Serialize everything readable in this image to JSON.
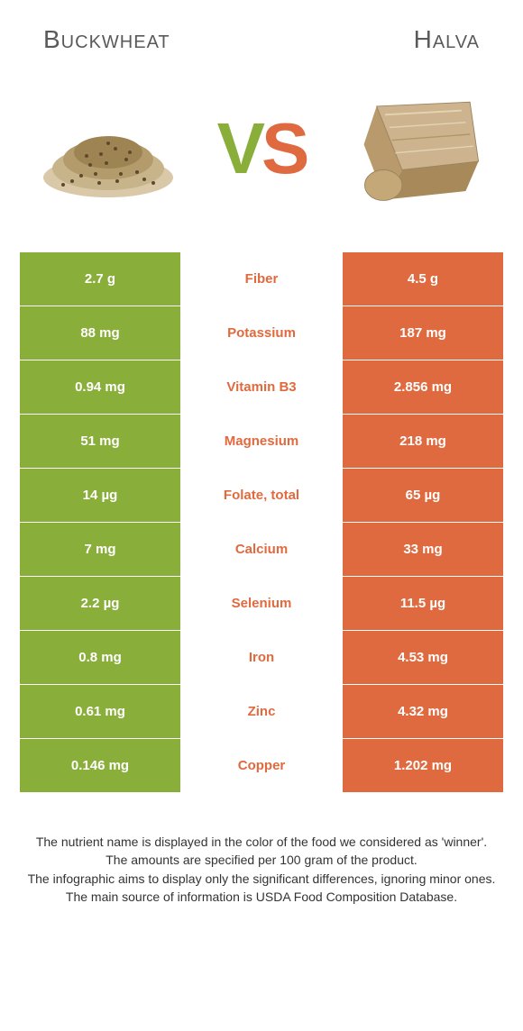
{
  "colors": {
    "left": "#8aae3a",
    "right": "#e06a3f",
    "title": "#5a5a5a",
    "footer": "#333333"
  },
  "food_left": {
    "title": "Buckwheat"
  },
  "food_right": {
    "title": "Halva"
  },
  "rows": [
    {
      "left": "2.7 g",
      "label": "Fiber",
      "right": "4.5 g",
      "winner": "right"
    },
    {
      "left": "88 mg",
      "label": "Potassium",
      "right": "187 mg",
      "winner": "right"
    },
    {
      "left": "0.94 mg",
      "label": "Vitamin B3",
      "right": "2.856 mg",
      "winner": "right"
    },
    {
      "left": "51 mg",
      "label": "Magnesium",
      "right": "218 mg",
      "winner": "right"
    },
    {
      "left": "14 µg",
      "label": "Folate, total",
      "right": "65 µg",
      "winner": "right"
    },
    {
      "left": "7 mg",
      "label": "Calcium",
      "right": "33 mg",
      "winner": "right"
    },
    {
      "left": "2.2 µg",
      "label": "Selenium",
      "right": "11.5 µg",
      "winner": "right"
    },
    {
      "left": "0.8 mg",
      "label": "Iron",
      "right": "4.53 mg",
      "winner": "right"
    },
    {
      "left": "0.61 mg",
      "label": "Zinc",
      "right": "4.32 mg",
      "winner": "right"
    },
    {
      "left": "0.146 mg",
      "label": "Copper",
      "right": "1.202 mg",
      "winner": "right"
    }
  ],
  "footer": {
    "line1": "The nutrient name is displayed in the color of the food we considered as 'winner'.",
    "line2": "The amounts are specified per 100 gram of the product.",
    "line3": "The infographic aims to display only the significant differences, ignoring minor ones.",
    "line4": "The main source of information is USDA Food Composition Database."
  }
}
